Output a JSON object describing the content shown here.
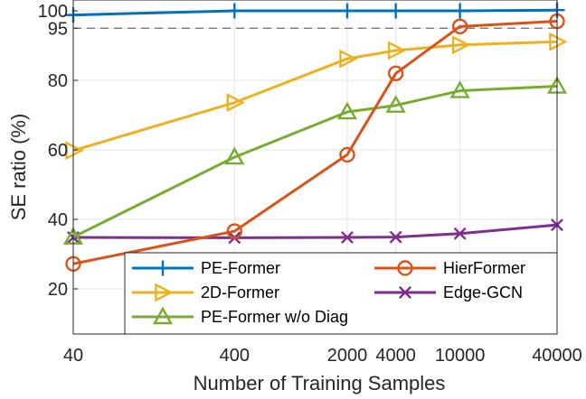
{
  "chart_data": {
    "type": "line",
    "xlabel": "Number of Training Samples",
    "ylabel": "SE ratio  (%)",
    "x": [
      40,
      400,
      2000,
      4000,
      10000,
      40000
    ],
    "x_tick_labels": [
      "40",
      "400",
      "2000",
      "4000",
      "10000",
      "40000"
    ],
    "x_scale": "log",
    "xlim": [
      40,
      40000
    ],
    "ylim": [
      20,
      100
    ],
    "y_ticks": [
      20,
      40,
      60,
      80,
      95,
      100
    ],
    "y_tick_labels": [
      "20",
      "40",
      "60",
      "80",
      "95",
      "100"
    ],
    "grid": true,
    "reference_line": {
      "y": 95,
      "style": "dashed"
    },
    "legend_position": "bottom-center",
    "series": [
      {
        "name": "PE-Former",
        "color": "#0072BD",
        "marker": "plus",
        "values": [
          98.8,
          100.0,
          100.0,
          100.0,
          100.0,
          100.2
        ]
      },
      {
        "name": "HierFormer",
        "color": "#D95319",
        "marker": "circle",
        "values": [
          27.2,
          36.6,
          58.6,
          82.0,
          95.5,
          97.0
        ]
      },
      {
        "name": "2D-Former",
        "color": "#EDB120",
        "marker": "triangle-right",
        "values": [
          59.8,
          73.6,
          86.2,
          88.6,
          90.2,
          91.1
        ]
      },
      {
        "name": "Edge-GCN",
        "color": "#7E2F8E",
        "marker": "x",
        "values": [
          34.8,
          34.7,
          34.8,
          34.9,
          35.9,
          38.4
        ]
      },
      {
        "name": "PE-Former w/o Diag",
        "color": "#77AC30",
        "marker": "triangle-up",
        "values": [
          34.9,
          57.9,
          70.9,
          72.8,
          77.0,
          78.3
        ]
      }
    ]
  }
}
